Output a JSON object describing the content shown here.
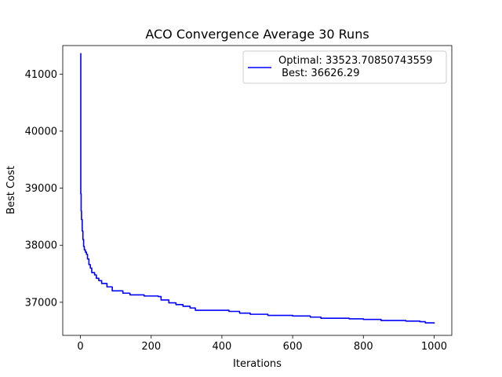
{
  "chart_data": {
    "type": "line",
    "title": "ACO Convergence Average 30 Runs",
    "xlabel": "Iterations",
    "ylabel": "Best Cost",
    "xlim": [
      -50,
      1050
    ],
    "ylim": [
      36420,
      41500
    ],
    "xticks": [
      0,
      200,
      400,
      600,
      800,
      1000
    ],
    "yticks": [
      37000,
      38000,
      39000,
      40000,
      41000
    ],
    "grid": false,
    "legend_position": "top-right",
    "legend_lines": [
      "Optimal: 33523.70850743559",
      " Best: 36626.29"
    ],
    "series": [
      {
        "color": "#0000ff",
        "step": true,
        "points": [
          [
            0,
            41360
          ],
          [
            1,
            38900
          ],
          [
            2,
            38600
          ],
          [
            3,
            38450
          ],
          [
            5,
            38250
          ],
          [
            7,
            38100
          ],
          [
            9,
            37980
          ],
          [
            11,
            37920
          ],
          [
            14,
            37880
          ],
          [
            17,
            37840
          ],
          [
            20,
            37760
          ],
          [
            24,
            37660
          ],
          [
            28,
            37600
          ],
          [
            32,
            37520
          ],
          [
            40,
            37480
          ],
          [
            45,
            37420
          ],
          [
            52,
            37380
          ],
          [
            60,
            37330
          ],
          [
            75,
            37270
          ],
          [
            90,
            37200
          ],
          [
            120,
            37160
          ],
          [
            140,
            37130
          ],
          [
            180,
            37110
          ],
          [
            220,
            37100
          ],
          [
            228,
            37040
          ],
          [
            250,
            36990
          ],
          [
            270,
            36960
          ],
          [
            290,
            36930
          ],
          [
            310,
            36900
          ],
          [
            325,
            36860
          ],
          [
            380,
            36860
          ],
          [
            420,
            36840
          ],
          [
            450,
            36810
          ],
          [
            480,
            36790
          ],
          [
            530,
            36770
          ],
          [
            600,
            36760
          ],
          [
            650,
            36740
          ],
          [
            680,
            36720
          ],
          [
            760,
            36710
          ],
          [
            800,
            36700
          ],
          [
            850,
            36680
          ],
          [
            920,
            36670
          ],
          [
            960,
            36660
          ],
          [
            975,
            36640
          ],
          [
            1000,
            36626
          ]
        ]
      }
    ]
  }
}
